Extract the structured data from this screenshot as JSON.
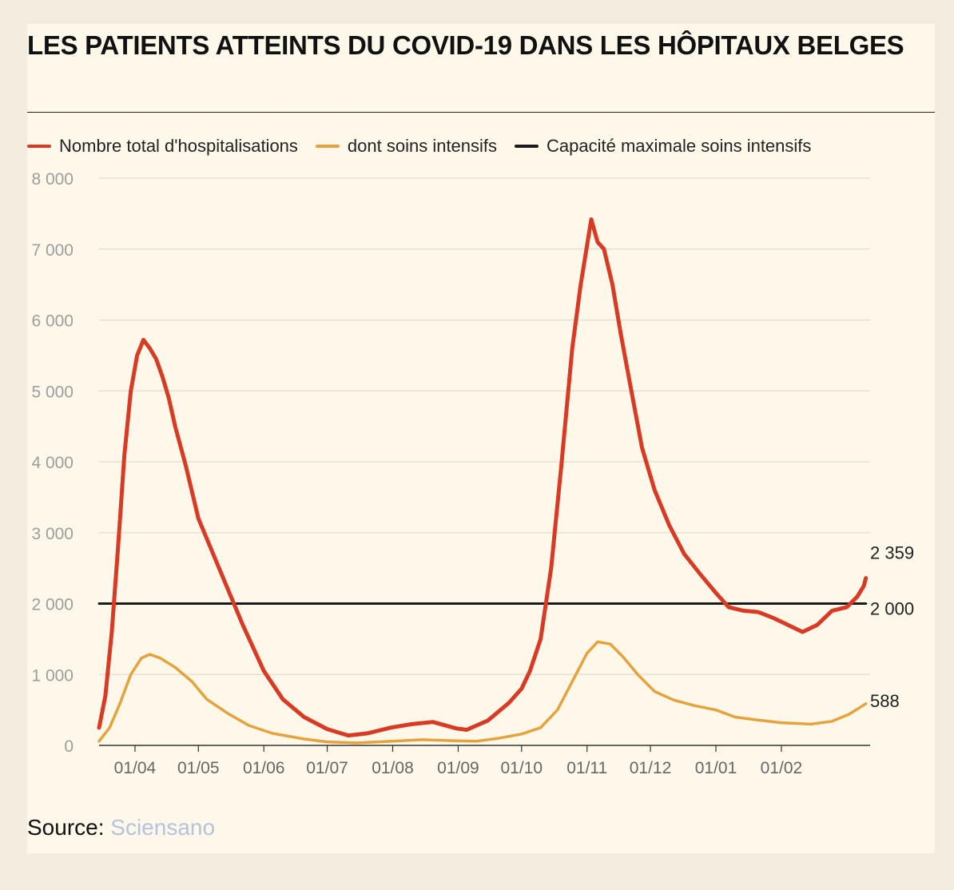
{
  "title": "LES PATIENTS ATTEINTS DU COVID-19 DANS LES HÔPITAUX BELGES",
  "source": {
    "label": "Source:",
    "link_text": "Sciensano"
  },
  "colors": {
    "background": "#fdf8ea",
    "hospital": "#d93a24",
    "icu": "#e6a23c",
    "capacity": "#1c1c1c",
    "grid": "#e3ddcf"
  },
  "chart_data": {
    "type": "line",
    "title": "LES PATIENTS ATTEINTS DU COVID-19 DANS LES HÔPITAUX BELGES",
    "xlabel": "",
    "ylabel": "",
    "ylim": [
      0,
      8000
    ],
    "yticks": [
      0,
      1000,
      2000,
      3000,
      4000,
      5000,
      6000,
      7000,
      8000
    ],
    "ytick_labels": [
      "0",
      "1 000",
      "2 000",
      "3 000",
      "4 000",
      "5 000",
      "6 000",
      "7 000",
      "8 000"
    ],
    "xlim": [
      "2020-03-15",
      "2021-03-15"
    ],
    "x_ticks": [
      {
        "date": "2020-04-01",
        "label": "01/04"
      },
      {
        "date": "2020-05-01",
        "label": "01/05"
      },
      {
        "date": "2020-06-01",
        "label": "01/06"
      },
      {
        "date": "2020-07-01",
        "label": "01/07"
      },
      {
        "date": "2020-08-01",
        "label": "01/08"
      },
      {
        "date": "2020-09-01",
        "label": "01/09"
      },
      {
        "date": "2020-10-01",
        "label": "01/10"
      },
      {
        "date": "2020-11-01",
        "label": "01/11"
      },
      {
        "date": "2020-12-01",
        "label": "01/12"
      },
      {
        "date": "2021-01-01",
        "label": "01/01"
      },
      {
        "date": "2021-02-01",
        "label": "01/02"
      }
    ],
    "grid": true,
    "legend_position": "top",
    "series": [
      {
        "name": "Nombre total d'hospitalisations",
        "color": "#d93a24",
        "end_label": "2 359",
        "points": [
          [
            "2020-03-15",
            250
          ],
          [
            "2020-03-18",
            700
          ],
          [
            "2020-03-21",
            1600
          ],
          [
            "2020-03-24",
            2800
          ],
          [
            "2020-03-27",
            4100
          ],
          [
            "2020-03-30",
            5000
          ],
          [
            "2020-04-02",
            5500
          ],
          [
            "2020-04-05",
            5720
          ],
          [
            "2020-04-08",
            5600
          ],
          [
            "2020-04-11",
            5450
          ],
          [
            "2020-04-14",
            5200
          ],
          [
            "2020-04-17",
            4900
          ],
          [
            "2020-04-20",
            4500
          ],
          [
            "2020-04-25",
            3950
          ],
          [
            "2020-05-01",
            3200
          ],
          [
            "2020-05-08",
            2700
          ],
          [
            "2020-05-15",
            2200
          ],
          [
            "2020-05-22",
            1700
          ],
          [
            "2020-06-01",
            1050
          ],
          [
            "2020-06-10",
            650
          ],
          [
            "2020-06-20",
            400
          ],
          [
            "2020-07-01",
            230
          ],
          [
            "2020-07-11",
            140
          ],
          [
            "2020-07-20",
            170
          ],
          [
            "2020-07-31",
            250
          ],
          [
            "2020-08-10",
            300
          ],
          [
            "2020-08-20",
            330
          ],
          [
            "2020-08-31",
            240
          ],
          [
            "2020-09-05",
            220
          ],
          [
            "2020-09-15",
            350
          ],
          [
            "2020-09-25",
            600
          ],
          [
            "2020-10-01",
            800
          ],
          [
            "2020-10-05",
            1050
          ],
          [
            "2020-10-10",
            1500
          ],
          [
            "2020-10-15",
            2500
          ],
          [
            "2020-10-20",
            4000
          ],
          [
            "2020-10-25",
            5600
          ],
          [
            "2020-10-29",
            6500
          ],
          [
            "2020-11-03",
            7420
          ],
          [
            "2020-11-06",
            7100
          ],
          [
            "2020-11-09",
            7000
          ],
          [
            "2020-11-13",
            6500
          ],
          [
            "2020-11-17",
            5800
          ],
          [
            "2020-11-22",
            5000
          ],
          [
            "2020-11-27",
            4200
          ],
          [
            "2020-12-03",
            3600
          ],
          [
            "2020-12-10",
            3100
          ],
          [
            "2020-12-17",
            2700
          ],
          [
            "2020-12-25",
            2400
          ],
          [
            "2021-01-01",
            2150
          ],
          [
            "2021-01-07",
            1950
          ],
          [
            "2021-01-14",
            1900
          ],
          [
            "2021-01-21",
            1880
          ],
          [
            "2021-01-28",
            1800
          ],
          [
            "2021-02-04",
            1700
          ],
          [
            "2021-02-11",
            1600
          ],
          [
            "2021-02-18",
            1700
          ],
          [
            "2021-02-25",
            1900
          ],
          [
            "2021-03-04",
            1950
          ],
          [
            "2021-03-09",
            2100
          ],
          [
            "2021-03-12",
            2250
          ],
          [
            "2021-03-13",
            2359
          ]
        ]
      },
      {
        "name": "dont soins intensifs",
        "color": "#e6a23c",
        "end_label": "588",
        "points": [
          [
            "2020-03-15",
            60
          ],
          [
            "2020-03-20",
            250
          ],
          [
            "2020-03-25",
            600
          ],
          [
            "2020-03-30",
            1000
          ],
          [
            "2020-04-04",
            1230
          ],
          [
            "2020-04-08",
            1285
          ],
          [
            "2020-04-13",
            1230
          ],
          [
            "2020-04-20",
            1100
          ],
          [
            "2020-04-28",
            900
          ],
          [
            "2020-05-05",
            650
          ],
          [
            "2020-05-15",
            450
          ],
          [
            "2020-05-25",
            280
          ],
          [
            "2020-06-05",
            170
          ],
          [
            "2020-06-20",
            90
          ],
          [
            "2020-07-01",
            50
          ],
          [
            "2020-07-15",
            35
          ],
          [
            "2020-08-01",
            60
          ],
          [
            "2020-08-15",
            80
          ],
          [
            "2020-08-31",
            65
          ],
          [
            "2020-09-10",
            60
          ],
          [
            "2020-09-20",
            100
          ],
          [
            "2020-10-01",
            160
          ],
          [
            "2020-10-10",
            250
          ],
          [
            "2020-10-18",
            500
          ],
          [
            "2020-10-25",
            900
          ],
          [
            "2020-11-01",
            1300
          ],
          [
            "2020-11-06",
            1460
          ],
          [
            "2020-11-12",
            1430
          ],
          [
            "2020-11-18",
            1250
          ],
          [
            "2020-11-25",
            1000
          ],
          [
            "2020-12-03",
            760
          ],
          [
            "2020-12-12",
            640
          ],
          [
            "2020-12-22",
            560
          ],
          [
            "2021-01-01",
            500
          ],
          [
            "2021-01-10",
            400
          ],
          [
            "2021-01-20",
            360
          ],
          [
            "2021-02-01",
            320
          ],
          [
            "2021-02-15",
            300
          ],
          [
            "2021-02-25",
            340
          ],
          [
            "2021-03-05",
            440
          ],
          [
            "2021-03-13",
            588
          ]
        ]
      },
      {
        "name": "Capacité maximale soins intensifs",
        "color": "#1c1c1c",
        "end_label": "2 000",
        "points": [
          [
            "2020-03-15",
            2000
          ],
          [
            "2021-03-13",
            2000
          ]
        ]
      }
    ]
  }
}
